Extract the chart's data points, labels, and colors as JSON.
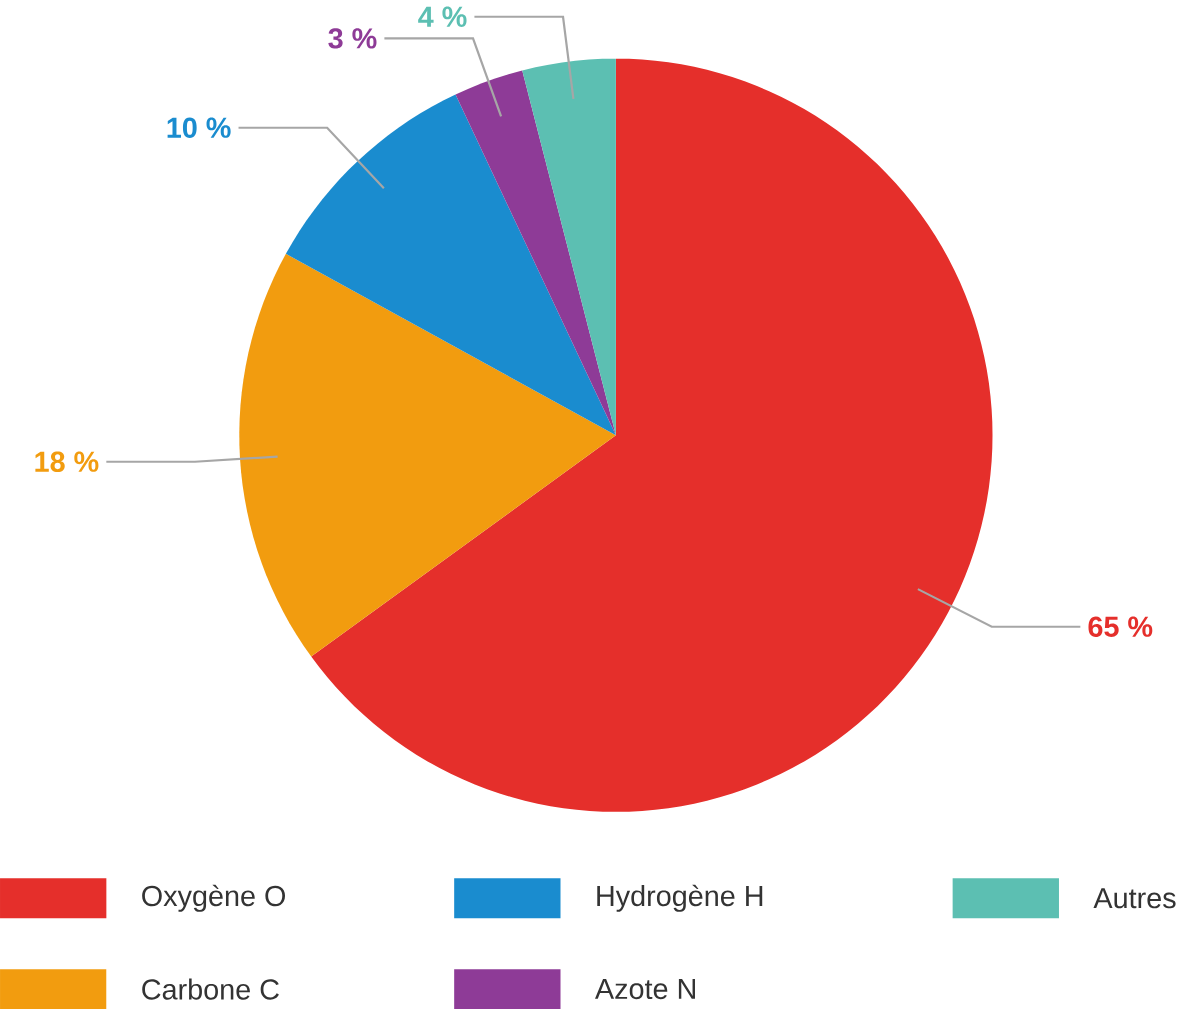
{
  "chart_data": {
    "type": "pie",
    "categories": [
      "Oxygène O",
      "Carbone C",
      "Hydrogène H",
      "Azote N",
      "Autres"
    ],
    "values": [
      65,
      18,
      10,
      3,
      4
    ],
    "value_labels": [
      "65 %",
      "18 %",
      "10 %",
      "3 %",
      "4 %"
    ],
    "colors": [
      "#e52f2b",
      "#f29c0f",
      "#1a8ccf",
      "#8e3b97",
      "#5cbfb2"
    ],
    "legend": "bottom"
  }
}
